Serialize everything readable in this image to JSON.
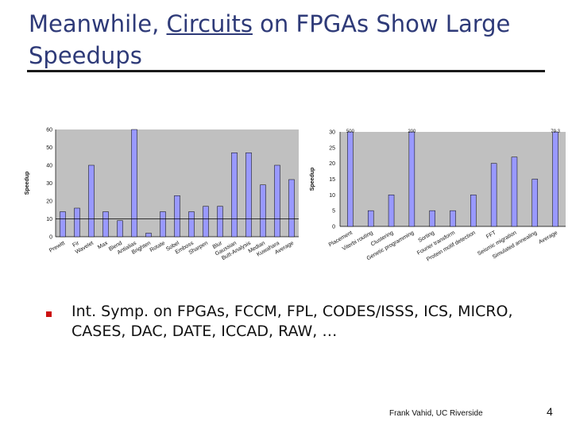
{
  "slide": {
    "title_pre": "Meanwhile, ",
    "title_link": "Circuits",
    "title_post": " on FPGAs Show Large Speedups",
    "bullet": "Int. Symp. on FPGAs, FCCM, FPL, CODES/ISSS, ICS, MICRO, CASES, DAC, DATE, ICCAD, RAW, …",
    "footer": "Frank Vahid, UC Riverside",
    "page_number": "4"
  },
  "colors": {
    "bar": "#9999ff",
    "plot_bg": "#c0c0c0",
    "title": "#2e3a78",
    "bullet": "#cc1111"
  },
  "chart_data": [
    {
      "type": "bar",
      "ylabel": "Speedup",
      "ylim": [
        0,
        60
      ],
      "yticks": [
        0,
        10,
        20,
        30,
        40,
        50,
        60
      ],
      "reference_line": 10,
      "categories": [
        "Prewitt",
        "Fir",
        "Wavelet",
        "Max",
        "Blend",
        "Antialias",
        "Brighten",
        "Rotate",
        "Sobel",
        "Emboss",
        "Sharpen",
        "Blur",
        "Gaussian",
        "Butt-Analysis",
        "Median",
        "Kuwahara",
        "Average"
      ],
      "values": [
        14,
        16,
        40,
        14,
        9,
        60,
        2,
        14,
        23,
        14,
        17,
        17,
        47,
        47,
        29,
        40,
        32
      ],
      "clipped_labels": []
    },
    {
      "type": "bar",
      "ylabel": "Speedup",
      "ylim": [
        0,
        30
      ],
      "yticks": [
        0,
        5,
        10,
        15,
        20,
        25,
        30
      ],
      "categories": [
        "Placement",
        "Viterbi routing",
        "Clustering",
        "Genetic programming",
        "Sorting",
        "Fourier transform",
        "Protein motif detection",
        "FFT",
        "Seismic migration",
        "Simulated annealing",
        "Average"
      ],
      "values": [
        30,
        5,
        10,
        30,
        5,
        5,
        10,
        20,
        22,
        15,
        30
      ],
      "clipped_labels": [
        "500",
        "",
        "",
        "200",
        "",
        "",
        "",
        "",
        "",
        "",
        "79.3"
      ]
    }
  ]
}
